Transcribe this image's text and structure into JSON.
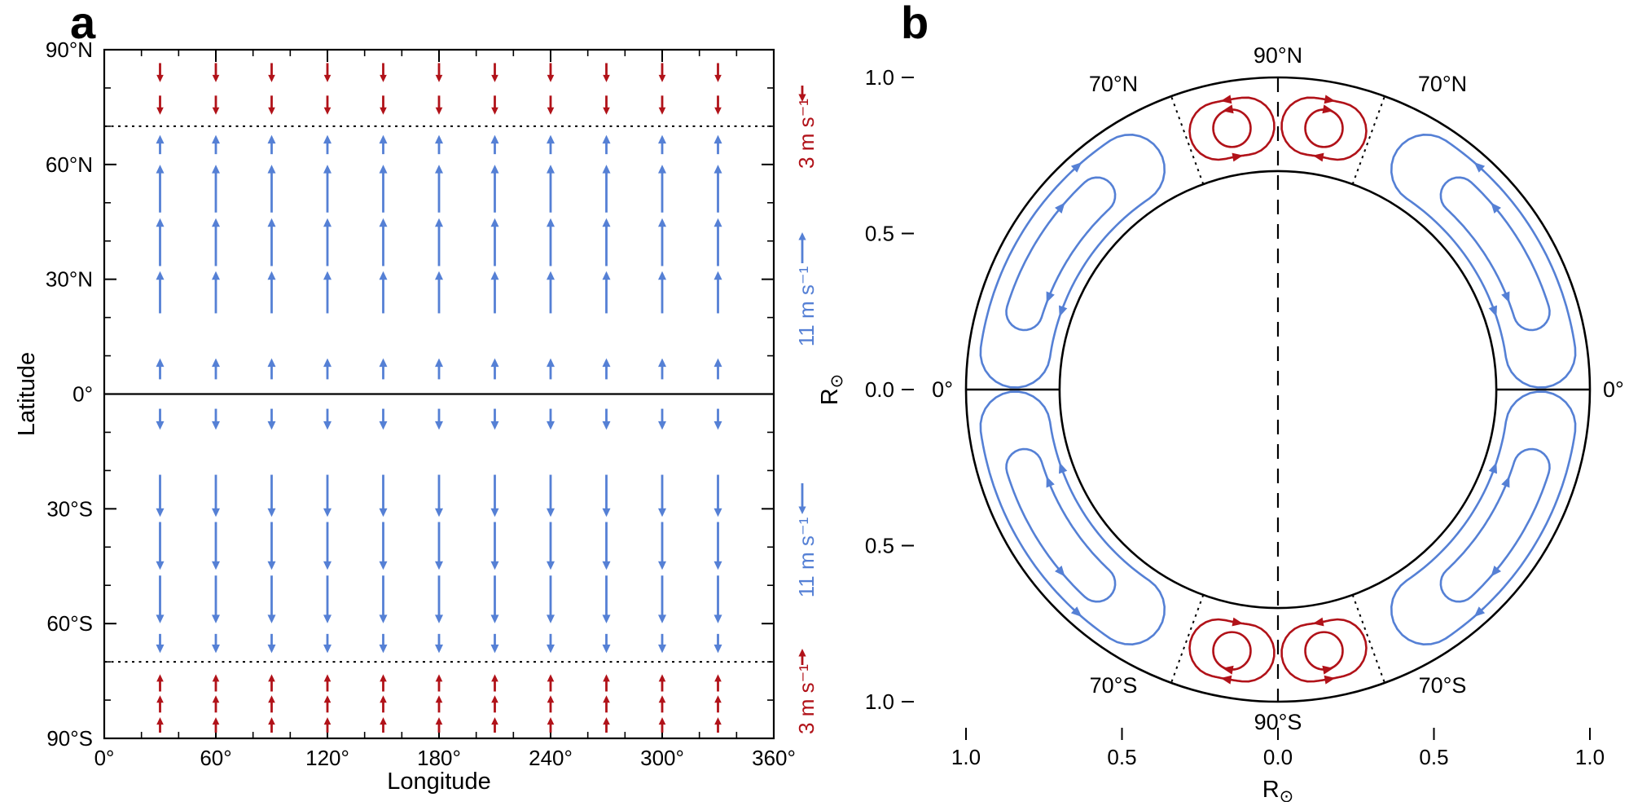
{
  "page": {
    "background": "#ffffff"
  },
  "colors": {
    "blue": "#5580d5",
    "red": "#b11219",
    "black": "#000000"
  },
  "panels": {
    "a_label": "a",
    "b_label": "b"
  },
  "chart_data": [
    {
      "id": "panel-a",
      "type": "quiver",
      "description": "Surface meridional flow vectors: poleward (blue) between equator and 70 deg, equatorward polar counter-flow (red) above 70 deg",
      "xlabel": "Longitude",
      "ylabel": "Latitude",
      "xlim": [
        0,
        360
      ],
      "ylim": [
        -90,
        90
      ],
      "x_ticks": {
        "values": [
          0,
          60,
          120,
          180,
          240,
          300,
          360
        ],
        "labels": [
          "0°",
          "60°",
          "120°",
          "180°",
          "240°",
          "300°",
          "360°"
        ]
      },
      "y_ticks": {
        "values": [
          90,
          60,
          30,
          0,
          -30,
          -60,
          -90
        ],
        "labels": [
          "90°N",
          "60°N",
          "30°N",
          "0°",
          "30°S",
          "60°S",
          "90°S"
        ]
      },
      "x_minor_step": 20,
      "y_minor_step": 10,
      "equator_lat": 0,
      "dotted_lats": [
        70,
        -70
      ],
      "arrow_longitudes": [
        30,
        60,
        90,
        120,
        150,
        180,
        210,
        240,
        270,
        300,
        330
      ],
      "arrow_rows": [
        {
          "lat": 84,
          "length_deg": 5,
          "dir": -1,
          "color": "red"
        },
        {
          "lat": 75.5,
          "length_deg": 5,
          "dir": -1,
          "color": "red"
        },
        {
          "lat": 65.2,
          "length_deg": 5,
          "dir": 1,
          "color": "blue"
        },
        {
          "lat": 53.7,
          "length_deg": 12.5,
          "dir": 1,
          "color": "blue"
        },
        {
          "lat": 39.7,
          "length_deg": 12.5,
          "dir": 1,
          "color": "blue"
        },
        {
          "lat": 26.6,
          "length_deg": 11,
          "dir": 1,
          "color": "blue"
        },
        {
          "lat": 6.6,
          "length_deg": 5.5,
          "dir": 1,
          "color": "blue"
        },
        {
          "lat": -6.6,
          "length_deg": 5.5,
          "dir": -1,
          "color": "blue"
        },
        {
          "lat": -26.6,
          "length_deg": 11,
          "dir": -1,
          "color": "blue"
        },
        {
          "lat": -39.7,
          "length_deg": 12.5,
          "dir": -1,
          "color": "blue"
        },
        {
          "lat": -53.7,
          "length_deg": 12.5,
          "dir": -1,
          "color": "blue"
        },
        {
          "lat": -65.2,
          "length_deg": 5,
          "dir": -1,
          "color": "blue"
        },
        {
          "lat": -75.5,
          "length_deg": 4.5,
          "dir": 1,
          "color": "red"
        },
        {
          "lat": -81,
          "length_deg": 4.5,
          "dir": 1,
          "color": "red"
        },
        {
          "lat": -86.5,
          "length_deg": 4,
          "dir": 1,
          "color": "red"
        }
      ],
      "speed_legends": [
        {
          "label": "3 m s⁻¹",
          "color": "red",
          "arrow": "down"
        },
        {
          "label": "11 m s⁻¹",
          "color": "blue",
          "arrow": "up"
        },
        {
          "label": "11 m s⁻¹",
          "color": "blue",
          "arrow": "down"
        },
        {
          "label": "3 m s⁻¹",
          "color": "red",
          "arrow": "up"
        }
      ]
    },
    {
      "id": "panel-b",
      "type": "streamline",
      "description": "Meridional circulation streamlines in the solar convection zone (annulus 0.7-1.0 solar radii): large poleward cells (blue) below 70 deg latitude, polar counter-cells (red) above 70 deg",
      "xlabel": "R⊙",
      "ylabel": "R⊙",
      "x_ticks": {
        "values": [
          -1,
          -0.5,
          0,
          0.5,
          1
        ],
        "labels": [
          "1.0",
          "0.5",
          "0.0",
          "0.5",
          "1.0"
        ]
      },
      "y_ticks": {
        "values": [
          1,
          0.5,
          0,
          -0.5,
          -1
        ],
        "labels": [
          "1.0",
          "0.5",
          "0.0",
          "0.5",
          "1.0"
        ]
      },
      "outer_radius": 1.0,
      "inner_radius": 0.7,
      "boundary_lat": 70,
      "latitude_labels": {
        "north_pole": "90°N",
        "north_70_left": "70°N",
        "north_70_right": "70°N",
        "equator_left": "0°",
        "equator_right": "0°",
        "south_70_left": "70°S",
        "south_70_right": "70°S",
        "south_pole": "90°S"
      },
      "blue_cells": {
        "surface_flow": "poleward",
        "quadrants": 4,
        "loops": [
          {
            "r_mid": 0.85,
            "r_half": 0.112,
            "lat_from": 8,
            "lat_to": 56
          },
          {
            "r_mid": 0.85,
            "r_half": 0.058,
            "lat_from": 17,
            "lat_to": 47
          }
        ]
      },
      "red_cells": {
        "surface_flow": "equatorward",
        "count": 4,
        "outer_loop": {
          "r_mid": 0.85,
          "r_half": 0.092,
          "lat_from": 77,
          "lat_to": 83
        },
        "inner_circle": {
          "r": 0.85,
          "lat": 80,
          "radius": 0.06
        }
      }
    }
  ]
}
